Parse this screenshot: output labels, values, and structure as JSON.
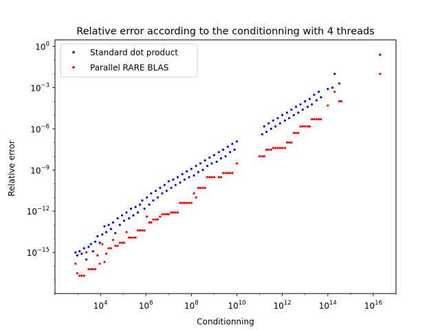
{
  "chart_data": {
    "type": "scatter",
    "title": "Relative error according to the conditionning with 4 threads",
    "xlabel": "Conditionning",
    "ylabel": "Relative error",
    "xscale": "log",
    "yscale": "log",
    "xlim": [
      100,
      1e+17
    ],
    "ylim": [
      1e-18,
      3.0
    ],
    "xticks": [
      {
        "value": 10000.0,
        "base": "10",
        "exp": "4"
      },
      {
        "value": 1000000.0,
        "base": "10",
        "exp": "6"
      },
      {
        "value": 100000000.0,
        "base": "10",
        "exp": "8"
      },
      {
        "value": 10000000000.0,
        "base": "10",
        "exp": "10"
      },
      {
        "value": 1000000000000.0,
        "base": "10",
        "exp": "12"
      },
      {
        "value": 100000000000000.0,
        "base": "10",
        "exp": "14"
      },
      {
        "value": 1e+16,
        "base": "10",
        "exp": "16"
      }
    ],
    "yticks": [
      {
        "value": 1.0,
        "base": "10",
        "exp": "0"
      },
      {
        "value": 0.001,
        "base": "10",
        "exp": "−3"
      },
      {
        "value": 1e-06,
        "base": "10",
        "exp": "−6"
      },
      {
        "value": 1e-09,
        "base": "10",
        "exp": "−9"
      },
      {
        "value": 1e-12,
        "base": "10",
        "exp": "−12"
      },
      {
        "value": 1e-15,
        "base": "10",
        "exp": "−15"
      }
    ],
    "legend_position": "top-left",
    "grid": false,
    "series": [
      {
        "name": "Standard dot product",
        "color": "#0000ff",
        "points": [
          [
            800.0,
            1e-15
          ],
          [
            950.0,
            6e-16
          ],
          [
            1200.0,
            1.2e-15
          ],
          [
            1500.0,
            8e-16
          ],
          [
            1900.0,
            2e-15
          ],
          [
            2400.0,
            3e-16
          ],
          [
            3000.0,
            2.5e-15
          ],
          [
            3800.0,
            4e-15
          ],
          [
            4700.0,
            1.2e-15
          ],
          [
            5900.0,
            6e-15
          ],
          [
            7400.0,
            1.5e-14
          ],
          [
            9300.0,
            5e-15
          ],
          [
            12000.0,
            2e-14
          ],
          [
            15000.0,
            8e-14
          ],
          [
            18000.0,
            3e-14
          ],
          [
            23000.0,
            1e-13
          ],
          [
            29000.0,
            5e-14
          ],
          [
            36000.0,
            1.5e-13
          ],
          [
            45000.0,
            2.5e-14
          ],
          [
            57000.0,
            3e-13
          ],
          [
            71000.0,
            1e-13
          ],
          [
            89000.0,
            5e-13
          ],
          [
            110000.0,
            2e-13
          ],
          [
            140000.0,
            8e-13
          ],
          [
            180000.0,
            3e-13
          ],
          [
            220000.0,
            1.5e-12
          ],
          [
            280000.0,
            5e-13
          ],
          [
            350000.0,
            2e-12
          ],
          [
            440000.0,
            8e-13
          ],
          [
            550000.0,
            3e-12
          ],
          [
            690000.0,
            6e-12
          ],
          [
            860000.0,
            1.5e-12
          ],
          [
            1100000.0,
            1e-11
          ],
          [
            1400000.0,
            3e-12
          ],
          [
            1700000.0,
            2e-11
          ],
          [
            2100000.0,
            6e-12
          ],
          [
            2700000.0,
            3e-11
          ],
          [
            3300000.0,
            1e-11
          ],
          [
            4200000.0,
            5e-11
          ],
          [
            5200000.0,
            2e-11
          ],
          [
            6600000.0,
            8e-11
          ],
          [
            8200000.0,
            3e-11
          ],
          [
            10000000.0,
            1.5e-10
          ],
          [
            13000000.0,
            5e-11
          ],
          [
            16000000.0,
            2e-10
          ],
          [
            20000000.0,
            8e-11
          ],
          [
            25000000.0,
            3e-10
          ],
          [
            32000000.0,
            1.2e-10
          ],
          [
            40000000.0,
            5e-10
          ],
          [
            50000000.0,
            2e-10
          ],
          [
            63000000.0,
            8e-10
          ],
          [
            79000000.0,
            3e-10
          ],
          [
            100000000.0,
            1.2e-09
          ],
          [
            130000000.0,
            4e-10
          ],
          [
            160000000.0,
            2e-09
          ],
          [
            200000000.0,
            7e-10
          ],
          [
            250000000.0,
            3e-09
          ],
          [
            320000000.0,
            1e-09
          ],
          [
            400000000.0,
            5e-09
          ],
          [
            500000000.0,
            2e-09
          ],
          [
            630000000.0,
            8e-09
          ],
          [
            790000000.0,
            3e-09
          ],
          [
            1000000000.0,
            1.2e-08
          ],
          [
            1300000000.0,
            4e-09
          ],
          [
            1600000000.0,
            2e-08
          ],
          [
            2000000000.0,
            7e-09
          ],
          [
            2500000000.0,
            3e-08
          ],
          [
            3200000000.0,
            1e-08
          ],
          [
            4000000000.0,
            5e-08
          ],
          [
            5000000000.0,
            2e-08
          ],
          [
            6300000000.0,
            8e-08
          ],
          [
            7900000000.0,
            3e-08
          ],
          [
            10000000000.0,
            1.2e-07
          ],
          [
            130000000000.0,
            4e-07
          ],
          [
            160000000000.0,
            1.5e-06
          ],
          [
            200000000000.0,
            6e-07
          ],
          [
            250000000000.0,
            2.5e-06
          ],
          [
            320000000000.0,
            1e-06
          ],
          [
            400000000000.0,
            4e-06
          ],
          [
            500000000000.0,
            1.5e-06
          ],
          [
            630000000000.0,
            6e-06
          ],
          [
            790000000000.0,
            2.5e-06
          ],
          [
            1000000000000.0,
            1e-05
          ],
          [
            1300000000000.0,
            4e-06
          ],
          [
            1600000000000.0,
            1.5e-05
          ],
          [
            2000000000000.0,
            6e-06
          ],
          [
            2500000000000.0,
            2.5e-05
          ],
          [
            3200000000000.0,
            1e-05
          ],
          [
            4000000000000.0,
            4e-05
          ],
          [
            5000000000000.0,
            1.5e-05
          ],
          [
            6300000000000.0,
            6e-05
          ],
          [
            7900000000000.0,
            2.5e-05
          ],
          [
            10000000000000.0,
            0.0001
          ],
          [
            13000000000000.0,
            4e-05
          ],
          [
            16000000000000.0,
            0.00015
          ],
          [
            20000000000000.0,
            6e-05
          ],
          [
            25000000000000.0,
            0.0003
          ],
          [
            32000000000000.0,
            0.00012
          ],
          [
            40000000000000.0,
            0.0005
          ],
          [
            50000000000000.0,
            0.0002
          ],
          [
            100000000000000.0,
            0.0008
          ],
          [
            160000000000000.0,
            0.001
          ],
          [
            200000000000000.0,
            0.01
          ],
          [
            320000000000000.0,
            0.002
          ],
          [
            2e+16,
            0.25
          ]
        ]
      },
      {
        "name": "Parallel RARE BLAS",
        "color": "#ff0000",
        "points": [
          [
            800.0,
            1.5e-16
          ],
          [
            950.0,
            3e-17
          ],
          [
            1200.0,
            2e-17
          ],
          [
            1500.0,
            2e-17
          ],
          [
            1900.0,
            2e-17
          ],
          [
            2400.0,
            1e-15
          ],
          [
            3000.0,
            6e-17
          ],
          [
            3800.0,
            6e-17
          ],
          [
            4700.0,
            6e-17
          ],
          [
            5900.0,
            6e-17
          ],
          [
            7400.0,
            6e-16
          ],
          [
            9300.0,
            1.5e-16
          ],
          [
            12000.0,
            4e-15
          ],
          [
            15000.0,
            2e-16
          ],
          [
            18000.0,
            8e-16
          ],
          [
            23000.0,
            2e-15
          ],
          [
            29000.0,
            2e-15
          ],
          [
            36000.0,
            8e-15
          ],
          [
            45000.0,
            3e-15
          ],
          [
            57000.0,
            3e-15
          ],
          [
            71000.0,
            5e-15
          ],
          [
            89000.0,
            5e-15
          ],
          [
            110000.0,
            5e-15
          ],
          [
            140000.0,
            3e-14
          ],
          [
            180000.0,
            1.2e-14
          ],
          [
            220000.0,
            1.2e-14
          ],
          [
            280000.0,
            1.2e-14
          ],
          [
            350000.0,
            1.2e-14
          ],
          [
            440000.0,
            4e-14
          ],
          [
            550000.0,
            4e-14
          ],
          [
            690000.0,
            4e-14
          ],
          [
            860000.0,
            4e-14
          ],
          [
            1100000.0,
            4e-13
          ],
          [
            1400000.0,
            1.5e-13
          ],
          [
            1700000.0,
            1.5e-13
          ],
          [
            2100000.0,
            2.5e-13
          ],
          [
            2700000.0,
            2.5e-13
          ],
          [
            3300000.0,
            2.5e-13
          ],
          [
            4200000.0,
            4e-13
          ],
          [
            5200000.0,
            6e-13
          ],
          [
            6600000.0,
            6e-13
          ],
          [
            8200000.0,
            6e-13
          ],
          [
            10000000.0,
            6e-13
          ],
          [
            13000000.0,
            8e-13
          ],
          [
            16000000.0,
            8e-13
          ],
          [
            20000000.0,
            8e-13
          ],
          [
            25000000.0,
            8e-13
          ],
          [
            32000000.0,
            4e-12
          ],
          [
            40000000.0,
            4e-12
          ],
          [
            50000000.0,
            4e-12
          ],
          [
            63000000.0,
            4e-12
          ],
          [
            79000000.0,
            4e-12
          ],
          [
            100000000.0,
            4e-12
          ],
          [
            130000000.0,
            2e-11
          ],
          [
            160000000.0,
            1e-11
          ],
          [
            200000000.0,
            5e-11
          ],
          [
            250000000.0,
            5e-11
          ],
          [
            320000000.0,
            5e-11
          ],
          [
            400000000.0,
            5e-11
          ],
          [
            500000000.0,
            3e-10
          ],
          [
            630000000.0,
            3e-10
          ],
          [
            790000000.0,
            3e-10
          ],
          [
            1000000000.0,
            3e-10
          ],
          [
            1600000000.0,
            3e-10
          ],
          [
            2000000000.0,
            3e-10
          ],
          [
            2500000000.0,
            6e-10
          ],
          [
            3200000000.0,
            6e-10
          ],
          [
            4000000000.0,
            6e-10
          ],
          [
            5000000000.0,
            6e-10
          ],
          [
            6300000000.0,
            6e-10
          ],
          [
            10000000000.0,
            3e-09
          ],
          [
            100000000000.0,
            1e-08
          ],
          [
            130000000000.0,
            1e-08
          ],
          [
            160000000000.0,
            1e-08
          ],
          [
            200000000000.0,
            3e-08
          ],
          [
            250000000000.0,
            3e-08
          ],
          [
            320000000000.0,
            3e-08
          ],
          [
            400000000000.0,
            4e-08
          ],
          [
            500000000000.0,
            4e-08
          ],
          [
            630000000000.0,
            4e-08
          ],
          [
            790000000000.0,
            4e-08
          ],
          [
            1000000000000.0,
            4e-08
          ],
          [
            1300000000000.0,
            4e-08
          ],
          [
            1600000000000.0,
            1e-07
          ],
          [
            2000000000000.0,
            1e-07
          ],
          [
            2500000000000.0,
            1e-07
          ],
          [
            3200000000000.0,
            5e-07
          ],
          [
            4000000000000.0,
            5e-07
          ],
          [
            5000000000000.0,
            5e-07
          ],
          [
            6300000000000.0,
            1.5e-06
          ],
          [
            7900000000000.0,
            1.5e-06
          ],
          [
            10000000000000.0,
            1.5e-06
          ],
          [
            13000000000000.0,
            1.5e-06
          ],
          [
            16000000000000.0,
            1.5e-06
          ],
          [
            20000000000000.0,
            5e-06
          ],
          [
            25000000000000.0,
            5e-06
          ],
          [
            32000000000000.0,
            5e-06
          ],
          [
            40000000000000.0,
            5e-06
          ],
          [
            50000000000000.0,
            5e-06
          ],
          [
            100000000000000.0,
            5e-05
          ],
          [
            200000000000000.0,
            0.0005
          ],
          [
            320000000000000.0,
            0.0001
          ],
          [
            400000000000000.0,
            0.0001
          ],
          [
            2e+16,
            0.01
          ]
        ]
      }
    ]
  }
}
